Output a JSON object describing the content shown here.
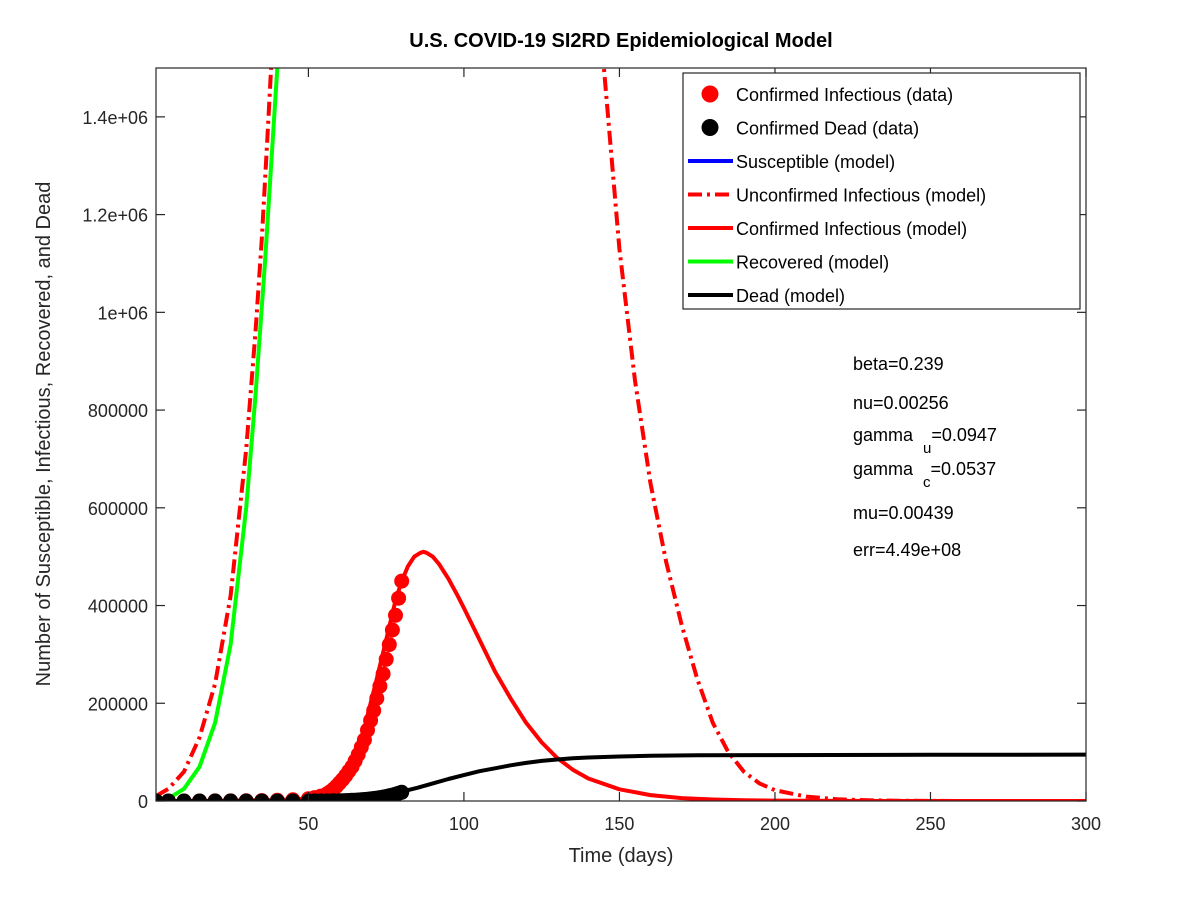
{
  "chart_data": {
    "type": "line",
    "title": "U.S. COVID-19 SI2RD Epidemiological Model",
    "xlabel": "Time (days)",
    "ylabel": "Number of Susceptible, Infectious, Recovered, and Dead",
    "xlim": [
      1,
      300
    ],
    "ylim": [
      0,
      1500000
    ],
    "x_ticks": [
      50,
      100,
      150,
      200,
      250,
      300
    ],
    "x_tick_labels": [
      "50",
      "100",
      "150",
      "200",
      "250",
      "300"
    ],
    "y_ticks": [
      0,
      200000,
      400000,
      600000,
      800000,
      1000000,
      1200000,
      1400000
    ],
    "y_tick_labels": [
      "0",
      "200000",
      "400000",
      "600000",
      "800000",
      "1e+06",
      "1.2e+06",
      "1.4e+06"
    ],
    "grid": false,
    "legend_position": "top-right",
    "legend": [
      {
        "label": "Confirmed Infectious (data)",
        "color": "#ff0000",
        "style": "marker"
      },
      {
        "label": "Confirmed Dead (data)",
        "color": "#000000",
        "style": "marker"
      },
      {
        "label": "Susceptible (model)",
        "color": "#0000ff",
        "style": "solid"
      },
      {
        "label": "Unconfirmed Infectious (model)",
        "color": "#ff0000",
        "style": "dashdot"
      },
      {
        "label": "Confirmed Infectious (model)",
        "color": "#ff0000",
        "style": "solid"
      },
      {
        "label": "Recovered (model)",
        "color": "#00ff00",
        "style": "solid"
      },
      {
        "label": "Dead (model)",
        "color": "#000000",
        "style": "solid"
      }
    ],
    "params": [
      {
        "name": "beta",
        "sub": "",
        "value": "=0.239"
      },
      {
        "name": "nu",
        "sub": "",
        "value": "=0.00256"
      },
      {
        "name": "gamma",
        "sub": "u",
        "value": "=0.0947"
      },
      {
        "name": "gamma",
        "sub": "c",
        "value": "=0.0537"
      },
      {
        "name": "mu",
        "sub": "",
        "value": "=0.00439"
      },
      {
        "name": "err",
        "sub": "",
        "value": "=4.49e+08"
      }
    ],
    "series": [
      {
        "name": "Susceptible (model)",
        "color": "#0000ff",
        "style": "solid",
        "x": [],
        "y": []
      },
      {
        "name": "Unconfirmed Infectious (model)",
        "color": "#ff0000",
        "style": "dashdot",
        "x": [
          1,
          5,
          10,
          15,
          20,
          25,
          30,
          33,
          35,
          37,
          38,
          140,
          145,
          150,
          155,
          160,
          165,
          170,
          175,
          180,
          185,
          190,
          195,
          200,
          210,
          220,
          230,
          240,
          250,
          260,
          280,
          300
        ],
        "y": [
          10000,
          25000,
          60000,
          130000,
          240000,
          420000,
          720000,
          960000,
          1150000,
          1380000,
          1500000,
          1780000,
          1500000,
          1130000,
          860000,
          650000,
          490000,
          360000,
          250000,
          160000,
          100000,
          60000,
          36000,
          22000,
          9000,
          3500,
          1500,
          600,
          250,
          100,
          20,
          5
        ]
      },
      {
        "name": "Confirmed Infectious (model)",
        "color": "#ff0000",
        "style": "solid",
        "x": [
          1,
          20,
          40,
          50,
          55,
          60,
          62,
          65,
          68,
          70,
          72,
          75,
          78,
          80,
          82,
          84,
          86,
          87,
          88,
          90,
          92,
          95,
          98,
          100,
          105,
          110,
          115,
          120,
          125,
          130,
          135,
          140,
          150,
          160,
          170,
          180,
          190,
          200,
          220,
          240,
          260,
          300
        ],
        "y": [
          0,
          500,
          2000,
          5000,
          11000,
          30000,
          45000,
          90000,
          150000,
          200000,
          250000,
          330000,
          410000,
          450000,
          480000,
          500000,
          508000,
          510000,
          508000,
          500000,
          485000,
          455000,
          420000,
          395000,
          330000,
          265000,
          210000,
          160000,
          120000,
          88000,
          64000,
          46000,
          24000,
          12000,
          6000,
          3000,
          1500,
          800,
          200,
          50,
          10,
          0
        ]
      },
      {
        "name": "Recovered (model)",
        "color": "#00ff00",
        "style": "solid",
        "x": [
          1,
          5,
          10,
          15,
          20,
          25,
          30,
          33,
          36,
          38,
          40
        ],
        "y": [
          0,
          5000,
          25000,
          70000,
          160000,
          320000,
          600000,
          830000,
          1100000,
          1300000,
          1500000
        ]
      },
      {
        "name": "Dead (model)",
        "color": "#000000",
        "style": "solid",
        "x": [
          1,
          40,
          55,
          60,
          65,
          70,
          75,
          80,
          85,
          90,
          95,
          100,
          105,
          110,
          115,
          120,
          125,
          130,
          135,
          140,
          150,
          160,
          175,
          200,
          250,
          300
        ],
        "y": [
          0,
          100,
          1000,
          2000,
          4000,
          7000,
          12000,
          19000,
          27000,
          36000,
          45000,
          53000,
          61000,
          67000,
          73000,
          78000,
          82000,
          85000,
          87500,
          89000,
          91000,
          92500,
          93500,
          94000,
          94500,
          95000
        ]
      },
      {
        "name": "Confirmed Infectious (data)",
        "color": "#ff0000",
        "style": "marker",
        "x": [
          1,
          5,
          10,
          15,
          20,
          25,
          30,
          35,
          40,
          45,
          50,
          52,
          54,
          56,
          57,
          58,
          59,
          60,
          61,
          62,
          63,
          64,
          65,
          66,
          67,
          68,
          69,
          70,
          71,
          72,
          73,
          74,
          75,
          76,
          77,
          78,
          79,
          80
        ],
        "y": [
          0,
          0,
          0,
          100,
          200,
          300,
          500,
          800,
          1500,
          2500,
          4500,
          7000,
          10000,
          15000,
          19000,
          24000,
          30000,
          37000,
          44000,
          52000,
          61000,
          70000,
          82000,
          95000,
          110000,
          125000,
          145000,
          165000,
          185000,
          210000,
          235000,
          260000,
          290000,
          320000,
          350000,
          380000,
          415000,
          450000
        ]
      },
      {
        "name": "Confirmed Dead (data)",
        "color": "#000000",
        "style": "marker",
        "x": [
          1,
          5,
          10,
          15,
          20,
          25,
          30,
          35,
          40,
          45,
          50,
          52,
          54,
          56,
          58,
          60,
          61,
          62,
          63,
          64,
          65,
          66,
          67,
          68,
          69,
          70,
          71,
          72,
          73,
          74,
          75,
          76,
          77,
          78,
          79,
          80
        ],
        "y": [
          0,
          0,
          0,
          0,
          0,
          0,
          0,
          0,
          0,
          50,
          100,
          150,
          200,
          300,
          400,
          600,
          700,
          900,
          1100,
          1400,
          1700,
          2100,
          2500,
          3000,
          3600,
          4300,
          5100,
          6000,
          7000,
          8100,
          9300,
          10600,
          12100,
          13800,
          15700,
          17800
        ]
      }
    ]
  }
}
